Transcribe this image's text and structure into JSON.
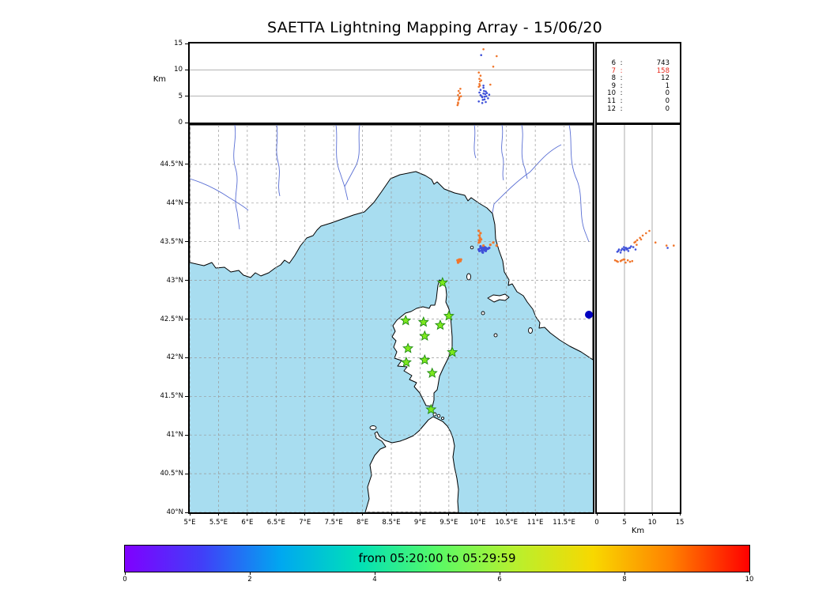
{
  "title": "SAETTA Lightning Mapping Array - 15/06/20",
  "top_panel": {
    "ylabel": "Km",
    "ticks": [
      0,
      5,
      10,
      15
    ],
    "ylim": [
      0,
      15
    ],
    "gridlines_km": [
      5,
      10
    ]
  },
  "stats_panel": {
    "rows": [
      {
        "level": "6",
        "count": "743"
      },
      {
        "level": "7",
        "count": "158"
      },
      {
        "level": "8",
        "count": "12"
      },
      {
        "level": "9",
        "count": "1"
      },
      {
        "level": "10",
        "count": "0"
      },
      {
        "level": "11",
        "count": "0"
      },
      {
        "level": "12",
        "count": "0"
      }
    ],
    "highlight_index": 1
  },
  "map_panel": {
    "xticks": [
      5,
      5.5,
      6,
      6.5,
      7,
      7.5,
      8,
      8.5,
      9,
      9.5,
      10,
      10.5,
      11,
      11.5
    ],
    "xtick_labels": [
      "5°E",
      "5.5°E",
      "6°E",
      "6.5°E",
      "7°E",
      "7.5°E",
      "8°E",
      "8.5°E",
      "9°E",
      "9.5°E",
      "10°E",
      "10.5°E",
      "11°E",
      "11.5°E"
    ],
    "yticks": [
      40,
      40.5,
      41,
      41.5,
      42,
      42.5,
      43,
      43.5,
      44,
      44.5
    ],
    "ytick_labels": [
      "40°N",
      "40.5°N",
      "41°N",
      "41.5°N",
      "42°N",
      "42.5°N",
      "43°N",
      "43.5°N",
      "44°N",
      "44.5°N"
    ]
  },
  "right_panel": {
    "xlabel": "Km",
    "ticks": [
      0,
      5,
      10,
      15
    ],
    "xlim": [
      0,
      15
    ],
    "gridlines_km": [
      5,
      10
    ]
  },
  "colorbar": {
    "label": "from 05:20:00 to 05:29:59",
    "ticks": [
      "0",
      "2",
      "4",
      "6",
      "8",
      "10"
    ],
    "tick_values": [
      0,
      2,
      4,
      6,
      8,
      10
    ],
    "range": [
      0,
      10
    ],
    "gradient": [
      "#8000ff",
      "#4040f8",
      "#00a8f0",
      "#00e0b8",
      "#58fa66",
      "#b8f02e",
      "#f8d800",
      "#ff8000",
      "#ff0000"
    ]
  },
  "colors": {
    "sea": "#a8ddf0",
    "river": "#5a6fd4",
    "lake": "#0000c0",
    "grid": "#999999",
    "panel_grid": "#888888",
    "flash_early": "#3f51d9",
    "flash_late": "#f0762c",
    "station_fill": "#7ce81e",
    "station_edge": "#1f8a12",
    "highlight_text": "#e8291c"
  },
  "chart_data": {
    "type": "scatter",
    "title": "SAETTA Lightning Mapping Array - 15/06/20",
    "time_window": "from 05:20:00 to 05:29:59",
    "map_extent": {
      "lon": [
        5,
        12
      ],
      "lat": [
        40,
        45
      ]
    },
    "altitude_range_km": [
      0,
      15
    ],
    "colorbar_range": [
      0,
      10
    ],
    "source_counts": [
      [
        "6",
        743
      ],
      [
        "7",
        158
      ],
      [
        "8",
        12
      ],
      [
        "9",
        1
      ],
      [
        "10",
        0
      ],
      [
        "11",
        0
      ],
      [
        "12",
        0
      ]
    ],
    "groups": {
      "b": "early (blue)",
      "o": "late (orange)"
    },
    "stations_lonlat": [
      [
        9.39,
        42.97
      ],
      [
        8.75,
        42.48
      ],
      [
        9.06,
        42.46
      ],
      [
        9.35,
        42.42
      ],
      [
        9.5,
        42.54
      ],
      [
        9.08,
        42.28
      ],
      [
        8.79,
        42.12
      ],
      [
        9.56,
        42.07
      ],
      [
        8.76,
        41.94
      ],
      [
        9.08,
        41.97
      ],
      [
        9.21,
        41.8
      ],
      [
        9.19,
        41.33
      ]
    ],
    "flashes_lon_lat_altkm_group": [
      [
        10.02,
        43.4,
        4.0,
        "b"
      ],
      [
        10.03,
        43.38,
        5.7,
        "b"
      ],
      [
        10.05,
        43.42,
        5.2,
        "b"
      ],
      [
        10.05,
        43.44,
        6.2,
        "b"
      ],
      [
        10.06,
        43.42,
        12.8,
        "b"
      ],
      [
        10.07,
        43.39,
        5.0,
        "b"
      ],
      [
        10.08,
        43.4,
        4.8,
        "b"
      ],
      [
        10.08,
        43.37,
        3.7,
        "b"
      ],
      [
        10.09,
        43.36,
        4.3,
        "b"
      ],
      [
        10.1,
        43.41,
        5.5,
        "b"
      ],
      [
        10.1,
        43.43,
        6.6,
        "b"
      ],
      [
        10.1,
        43.4,
        7.0,
        "b"
      ],
      [
        10.11,
        43.42,
        6.0,
        "b"
      ],
      [
        10.12,
        43.39,
        4.4,
        "b"
      ],
      [
        10.12,
        43.43,
        4.9,
        "b"
      ],
      [
        10.13,
        43.4,
        5.4,
        "b"
      ],
      [
        10.14,
        43.42,
        5.9,
        "b"
      ],
      [
        10.14,
        43.38,
        3.9,
        "b"
      ],
      [
        10.15,
        43.4,
        5.0,
        "b"
      ],
      [
        10.16,
        43.41,
        5.6,
        "b"
      ],
      [
        10.18,
        43.41,
        4.6,
        "b"
      ],
      [
        10.2,
        43.42,
        5.3,
        "b"
      ],
      [
        9.65,
        43.26,
        3.3,
        "o"
      ],
      [
        9.66,
        43.24,
        3.8,
        "o"
      ],
      [
        9.66,
        43.23,
        5.2,
        "o"
      ],
      [
        9.66,
        43.25,
        3.6,
        "o"
      ],
      [
        9.67,
        43.25,
        4.3,
        "o"
      ],
      [
        9.67,
        43.24,
        6.0,
        "o"
      ],
      [
        9.68,
        43.27,
        4.8,
        "o"
      ],
      [
        9.68,
        43.26,
        4.5,
        "o"
      ],
      [
        9.69,
        43.26,
        5.6,
        "o"
      ],
      [
        9.7,
        43.25,
        6.4,
        "o"
      ],
      [
        9.71,
        43.27,
        5.0,
        "o"
      ],
      [
        10.02,
        43.49,
        6.8,
        "o"
      ],
      [
        10.03,
        43.52,
        7.3,
        "o"
      ],
      [
        10.04,
        43.55,
        7.8,
        "o"
      ],
      [
        10.03,
        43.58,
        8.3,
        "o"
      ],
      [
        10.05,
        43.61,
        8.9,
        "o"
      ],
      [
        10.02,
        43.64,
        9.5,
        "o"
      ],
      [
        10.06,
        43.53,
        8.0,
        "o"
      ],
      [
        10.04,
        43.5,
        7.0,
        "o"
      ],
      [
        10.22,
        43.46,
        7.2,
        "o"
      ],
      [
        10.27,
        43.49,
        10.6,
        "o"
      ],
      [
        10.1,
        43.45,
        13.9,
        "o"
      ],
      [
        10.33,
        43.45,
        12.6,
        "o"
      ]
    ]
  }
}
